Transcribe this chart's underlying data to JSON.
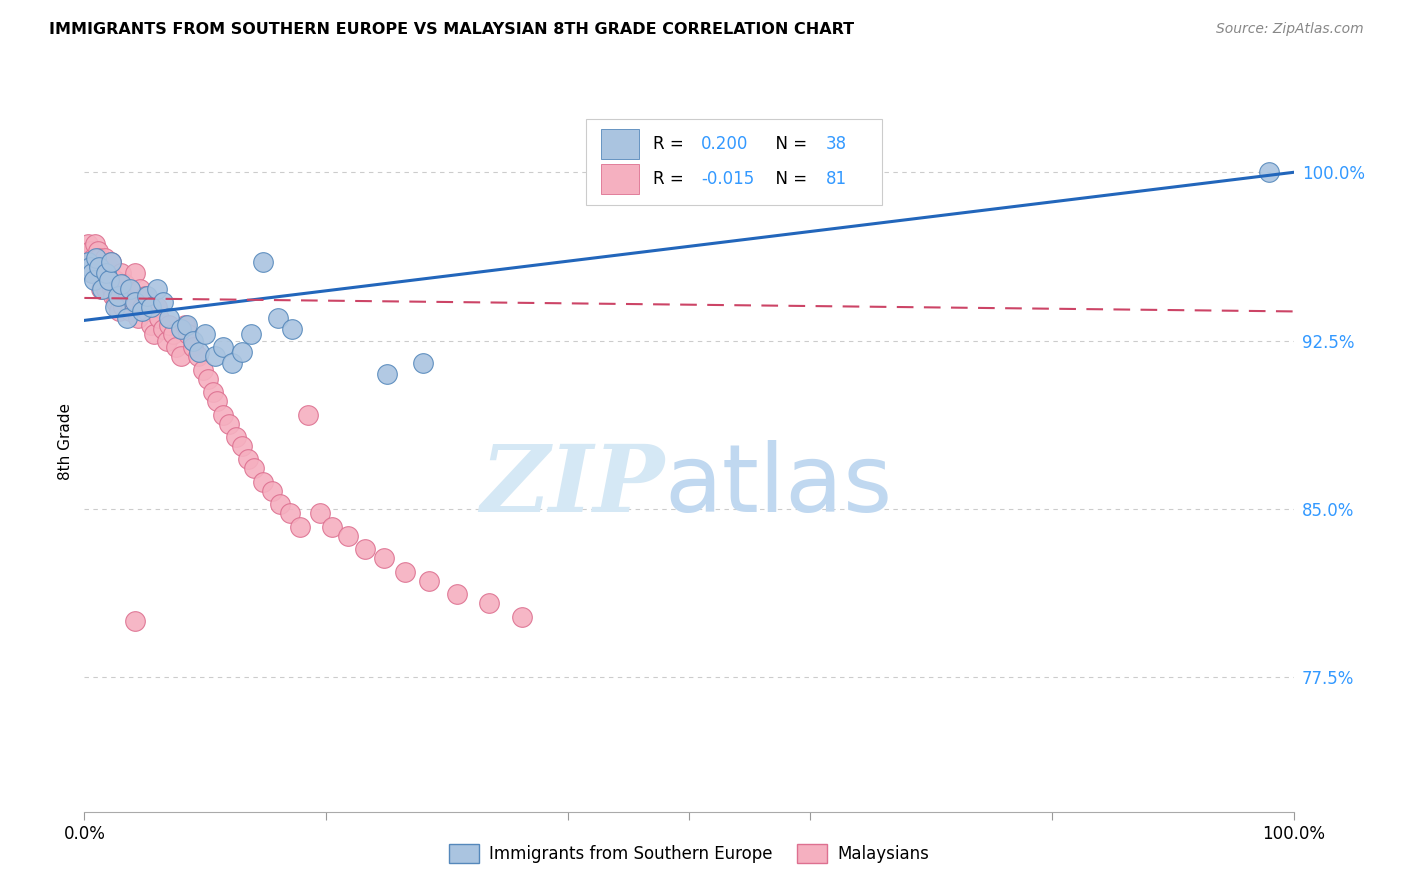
{
  "title": "IMMIGRANTS FROM SOUTHERN EUROPE VS MALAYSIAN 8TH GRADE CORRELATION CHART",
  "source": "Source: ZipAtlas.com",
  "ylabel": "8th Grade",
  "ytick_labels": [
    "77.5%",
    "85.0%",
    "92.5%",
    "100.0%"
  ],
  "ytick_values": [
    0.775,
    0.85,
    0.925,
    1.0
  ],
  "xlim": [
    0.0,
    1.0
  ],
  "ylim": [
    0.715,
    1.045
  ],
  "blue_color": "#aac4e0",
  "blue_edge_color": "#5588bb",
  "pink_color": "#f5b0c0",
  "pink_edge_color": "#dd7090",
  "blue_line_color": "#2266bb",
  "pink_line_color": "#cc4466",
  "grid_color": "#cccccc",
  "watermark_zip_color": "#d5e8f5",
  "watermark_atlas_color": "#c0d8f0",
  "tick_color": "#3399ff",
  "blue_line_x": [
    0.0,
    1.0
  ],
  "blue_line_y": [
    0.934,
    1.0
  ],
  "pink_line_x": [
    0.0,
    1.0
  ],
  "pink_line_y": [
    0.944,
    0.938
  ],
  "blue_scatter_x": [
    0.003,
    0.005,
    0.006,
    0.008,
    0.01,
    0.012,
    0.015,
    0.018,
    0.02,
    0.022,
    0.025,
    0.028,
    0.03,
    0.035,
    0.038,
    0.042,
    0.048,
    0.052,
    0.055,
    0.06,
    0.065,
    0.07,
    0.08,
    0.085,
    0.09,
    0.095,
    0.1,
    0.108,
    0.115,
    0.122,
    0.13,
    0.138,
    0.148,
    0.16,
    0.172,
    0.25,
    0.28,
    0.98
  ],
  "blue_scatter_y": [
    0.96,
    0.958,
    0.955,
    0.952,
    0.962,
    0.958,
    0.948,
    0.955,
    0.952,
    0.96,
    0.94,
    0.945,
    0.95,
    0.935,
    0.948,
    0.942,
    0.938,
    0.945,
    0.94,
    0.948,
    0.942,
    0.935,
    0.93,
    0.932,
    0.925,
    0.92,
    0.928,
    0.918,
    0.922,
    0.915,
    0.92,
    0.928,
    0.96,
    0.935,
    0.93,
    0.91,
    0.915,
    1.0
  ],
  "pink_scatter_x": [
    0.002,
    0.003,
    0.004,
    0.005,
    0.006,
    0.007,
    0.008,
    0.009,
    0.01,
    0.011,
    0.012,
    0.013,
    0.014,
    0.015,
    0.016,
    0.017,
    0.018,
    0.019,
    0.02,
    0.021,
    0.022,
    0.023,
    0.024,
    0.025,
    0.026,
    0.027,
    0.028,
    0.029,
    0.03,
    0.032,
    0.034,
    0.036,
    0.038,
    0.04,
    0.042,
    0.044,
    0.046,
    0.048,
    0.05,
    0.052,
    0.055,
    0.058,
    0.06,
    0.062,
    0.065,
    0.068,
    0.07,
    0.073,
    0.076,
    0.08,
    0.083,
    0.086,
    0.09,
    0.094,
    0.098,
    0.102,
    0.106,
    0.11,
    0.115,
    0.12,
    0.125,
    0.13,
    0.135,
    0.14,
    0.148,
    0.155,
    0.162,
    0.17,
    0.178,
    0.185,
    0.195,
    0.205,
    0.218,
    0.232,
    0.248,
    0.265,
    0.285,
    0.308,
    0.335,
    0.362,
    0.042
  ],
  "pink_scatter_y": [
    0.962,
    0.968,
    0.958,
    0.965,
    0.955,
    0.962,
    0.96,
    0.968,
    0.958,
    0.965,
    0.962,
    0.955,
    0.948,
    0.958,
    0.955,
    0.962,
    0.948,
    0.955,
    0.958,
    0.952,
    0.96,
    0.948,
    0.945,
    0.952,
    0.942,
    0.948,
    0.945,
    0.938,
    0.955,
    0.94,
    0.95,
    0.945,
    0.938,
    0.942,
    0.955,
    0.935,
    0.948,
    0.94,
    0.945,
    0.938,
    0.932,
    0.928,
    0.94,
    0.935,
    0.93,
    0.925,
    0.932,
    0.928,
    0.922,
    0.918,
    0.932,
    0.928,
    0.922,
    0.918,
    0.912,
    0.908,
    0.902,
    0.898,
    0.892,
    0.888,
    0.882,
    0.878,
    0.872,
    0.868,
    0.862,
    0.858,
    0.852,
    0.848,
    0.842,
    0.892,
    0.848,
    0.842,
    0.838,
    0.832,
    0.828,
    0.822,
    0.818,
    0.812,
    0.808,
    0.802,
    0.8
  ]
}
